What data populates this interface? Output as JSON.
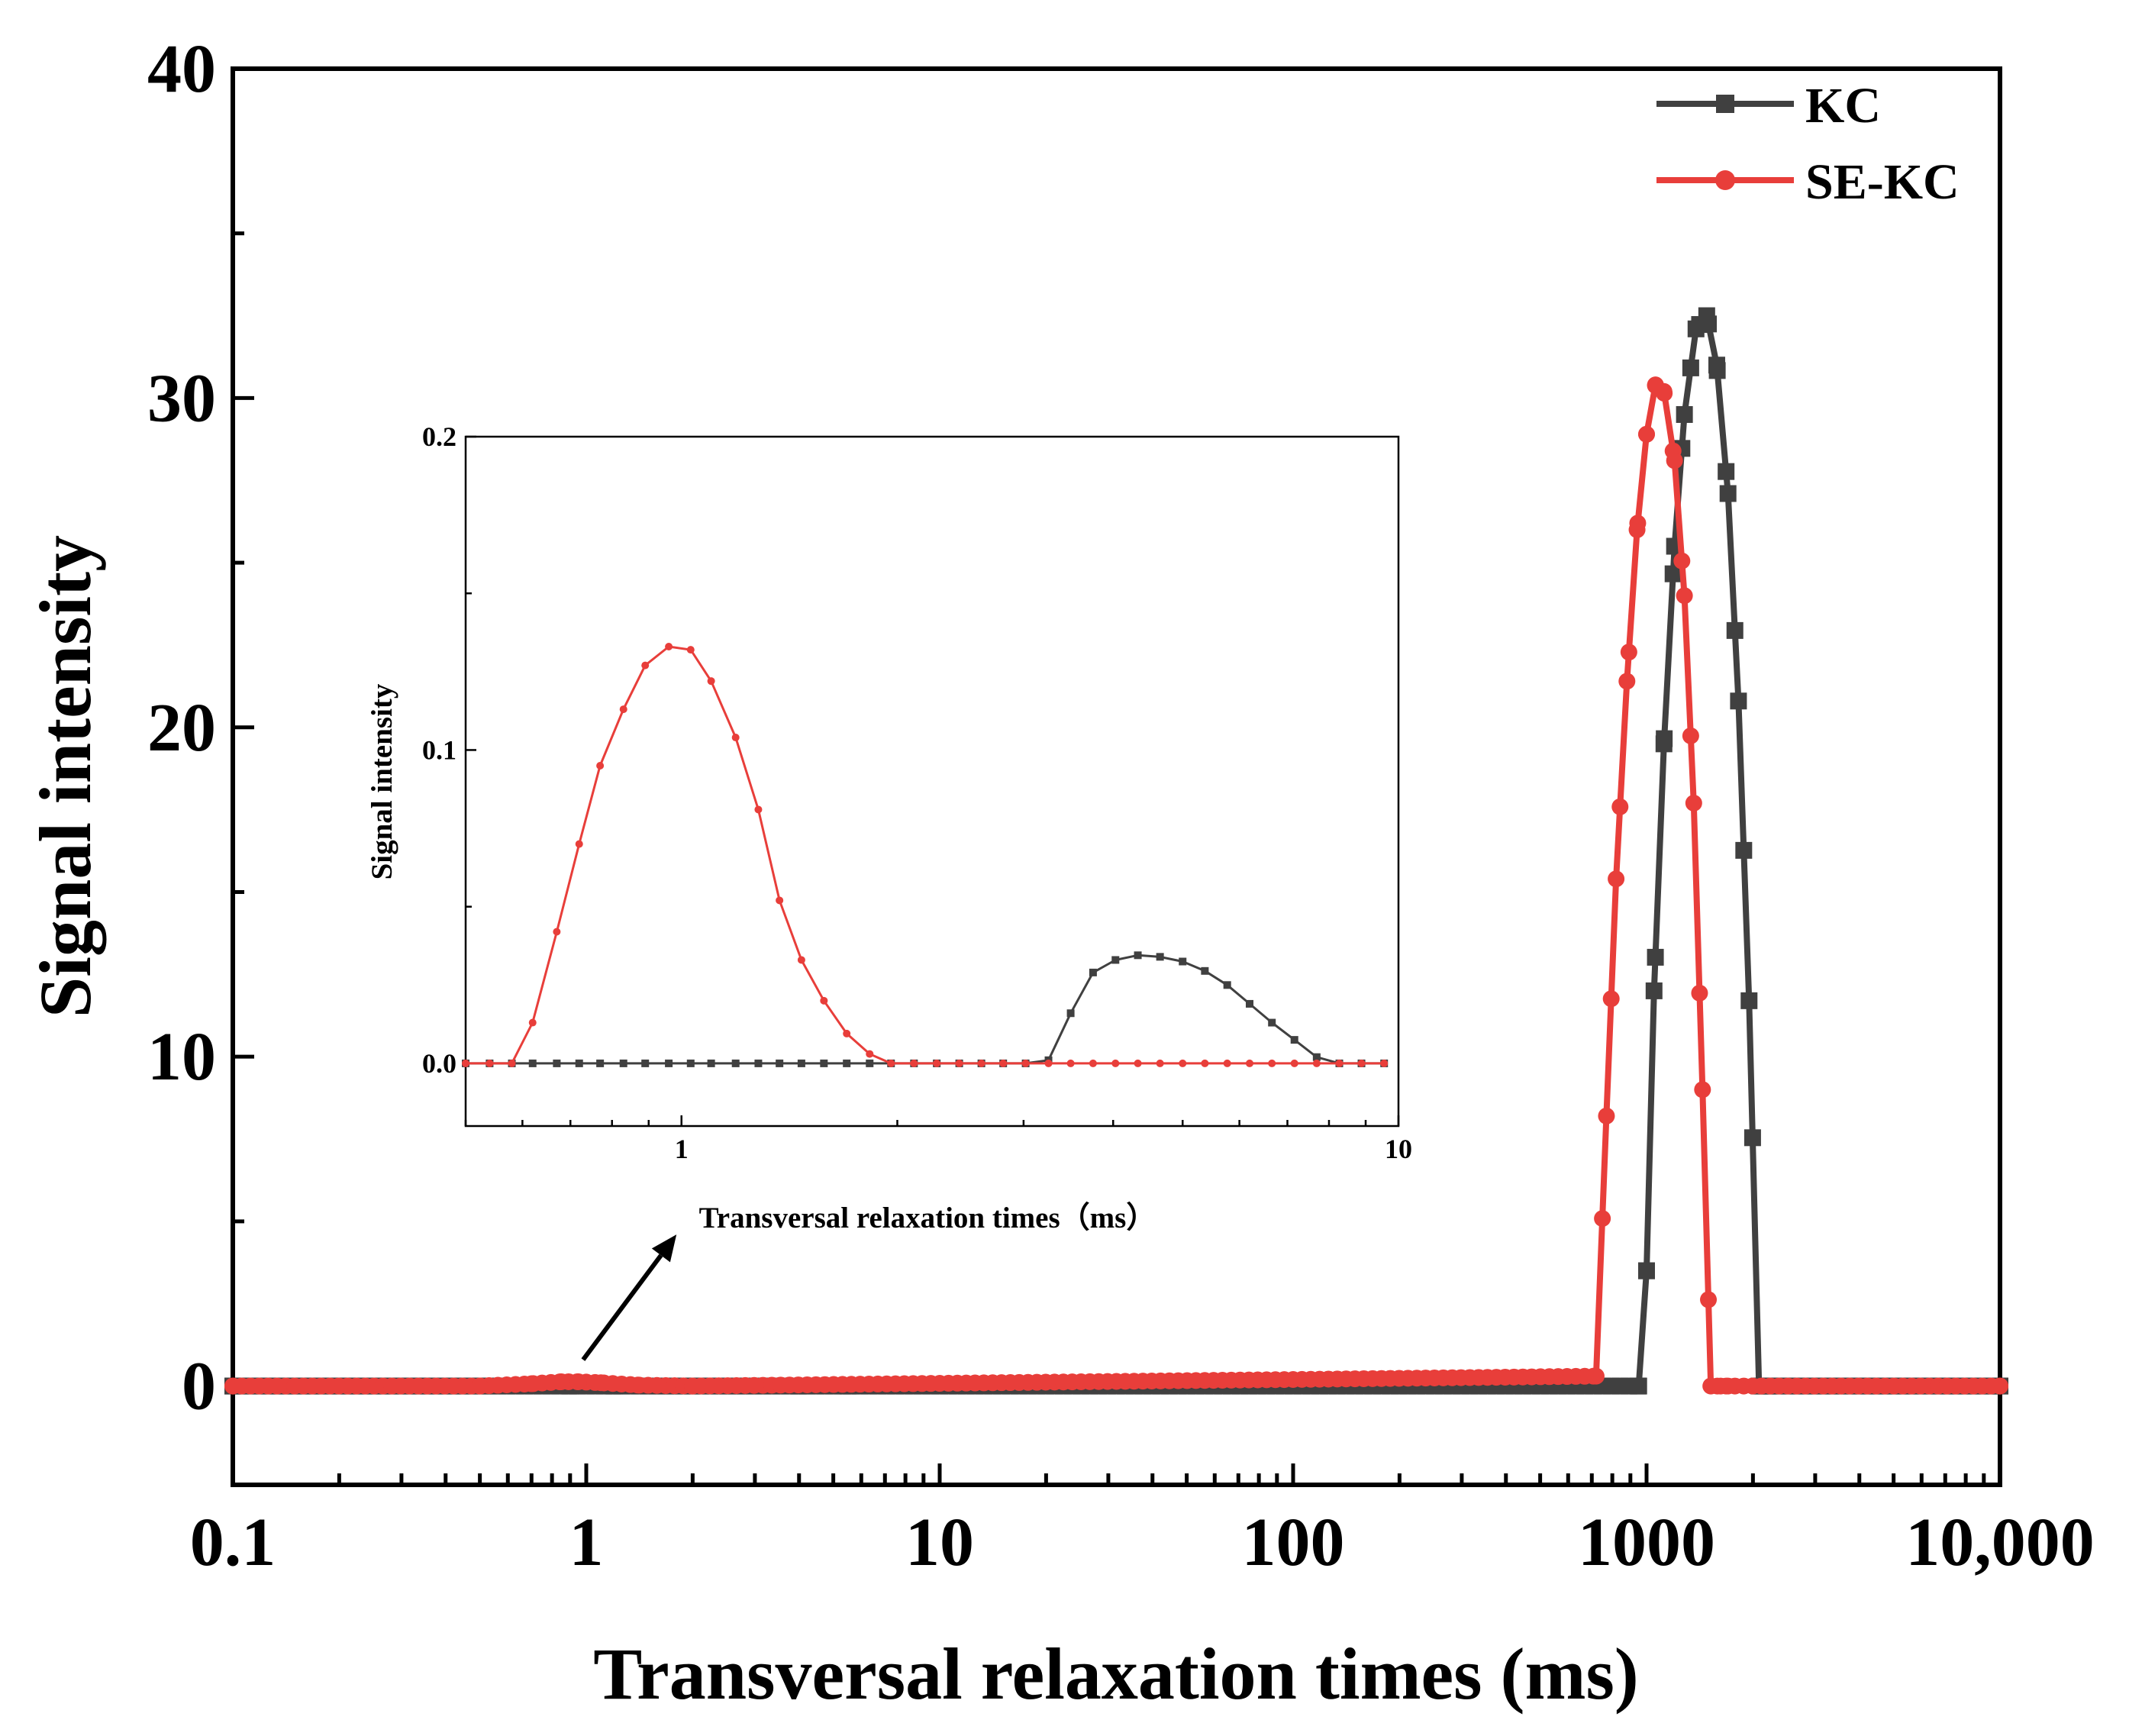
{
  "chart_data": [
    {
      "id": "main",
      "type": "line",
      "xscale": "log",
      "xlim": [
        0.1,
        10000
      ],
      "ylim": [
        -3,
        40
      ],
      "xticks": [
        0.1,
        1,
        10,
        100,
        1000,
        10000
      ],
      "xtick_labels": [
        "0.1",
        "1",
        "10",
        "100",
        "1000",
        "10,000"
      ],
      "yticks": [
        0,
        10,
        20,
        30,
        40
      ],
      "ytick_labels": [
        "0",
        "10",
        "20",
        "30",
        "40"
      ],
      "xlabel": "Transversal relaxation times (ms)",
      "ylabel": "Signal intensity",
      "legend_position": "top-right",
      "series": [
        {
          "name": "KC",
          "color": "#404040",
          "marker": "square",
          "x": [
            0.1,
            0.9,
            1.2,
            4.0,
            5.5,
            950,
            1000,
            1050,
            1120,
            1200,
            1280,
            1380,
            1480,
            1580,
            1700,
            1820,
            1950,
            2080,
            2200,
            10000
          ],
          "y": [
            0,
            0,
            0,
            0,
            0,
            0,
            3.5,
            12.0,
            19.5,
            25.5,
            29.5,
            32.1,
            32.5,
            31.0,
            27.1,
            20.8,
            11.7,
            0,
            0,
            0
          ]
        },
        {
          "name": "SE-KC",
          "color": "#e83e3a",
          "marker": "circle",
          "x": [
            0.1,
            0.5,
            0.7,
            0.85,
            0.95,
            1.1,
            1.4,
            2.0,
            720,
            770,
            820,
            880,
            940,
            1000,
            1060,
            1120,
            1200,
            1280,
            1360,
            1440,
            1520,
            1620,
            1700,
            10000
          ],
          "y": [
            0,
            0,
            0.07,
            0.13,
            0.13,
            0.1,
            0.03,
            0,
            0.3,
            8.2,
            15.4,
            21.4,
            26.0,
            28.9,
            30.4,
            30.2,
            28.1,
            24.0,
            17.7,
            9.0,
            0,
            0,
            0,
            0
          ]
        }
      ],
      "annotation": {
        "type": "arrow",
        "from": [
          0.98,
          0.8
        ],
        "to": [
          1.8,
          4.6
        ]
      }
    },
    {
      "id": "inset",
      "type": "line",
      "xscale": "log",
      "xlim": [
        0.5,
        10
      ],
      "ylim": [
        -0.02,
        0.2
      ],
      "xticks": [
        1,
        10
      ],
      "xtick_labels": [
        "1",
        "10"
      ],
      "yticks": [
        0.0,
        0.1,
        0.2
      ],
      "ytick_labels": [
        "0.0",
        "0.1",
        "0.2"
      ],
      "xlabel": "Transversal relaxation times（ms）",
      "ylabel": "Signal intensity",
      "series": [
        {
          "name": "KC",
          "color": "#404040",
          "marker": "square",
          "x": [
            0.5,
            0.54,
            0.58,
            0.62,
            0.67,
            0.72,
            0.77,
            0.83,
            0.89,
            0.96,
            1.03,
            1.1,
            1.19,
            1.28,
            1.37,
            1.47,
            1.58,
            1.7,
            1.83,
            1.96,
            2.11,
            2.27,
            2.44,
            2.62,
            2.81,
            3.02,
            3.25,
            3.49,
            3.75,
            4.03,
            4.33,
            4.65,
            5.0,
            5.37,
            5.77,
            6.2,
            6.66,
            7.16,
            7.69,
            8.27,
            8.88,
            9.55
          ],
          "y": [
            0,
            0,
            0,
            0,
            0,
            0,
            0,
            0,
            0,
            0,
            0,
            0,
            0,
            0,
            0,
            0,
            0,
            0,
            0,
            0,
            0,
            0,
            0,
            0,
            0,
            0,
            0.001,
            0.016,
            0.029,
            0.033,
            0.0345,
            0.034,
            0.0325,
            0.0295,
            0.025,
            0.019,
            0.013,
            0.0075,
            0.002,
            0,
            0,
            0
          ]
        },
        {
          "name": "SE-KC",
          "color": "#e83e3a",
          "marker": "circle",
          "x": [
            0.5,
            0.54,
            0.58,
            0.62,
            0.67,
            0.72,
            0.77,
            0.83,
            0.89,
            0.96,
            1.03,
            1.1,
            1.19,
            1.28,
            1.37,
            1.47,
            1.58,
            1.7,
            1.83,
            1.96,
            2.11,
            2.27,
            2.44,
            2.62,
            2.81,
            3.02,
            3.25,
            3.49,
            3.75,
            4.03,
            4.33,
            4.65,
            5.0,
            5.37,
            5.77,
            6.2,
            6.66,
            7.16,
            7.69,
            8.27,
            8.88,
            9.55
          ],
          "y": [
            0,
            0,
            0,
            0.013,
            0.042,
            0.07,
            0.095,
            0.113,
            0.127,
            0.133,
            0.132,
            0.122,
            0.104,
            0.081,
            0.052,
            0.033,
            0.02,
            0.0095,
            0.003,
            0,
            0,
            0,
            0,
            0,
            0,
            0,
            0,
            0,
            0,
            0,
            0,
            0,
            0,
            0,
            0,
            0,
            0,
            0,
            0,
            0,
            0,
            0
          ]
        }
      ]
    }
  ]
}
